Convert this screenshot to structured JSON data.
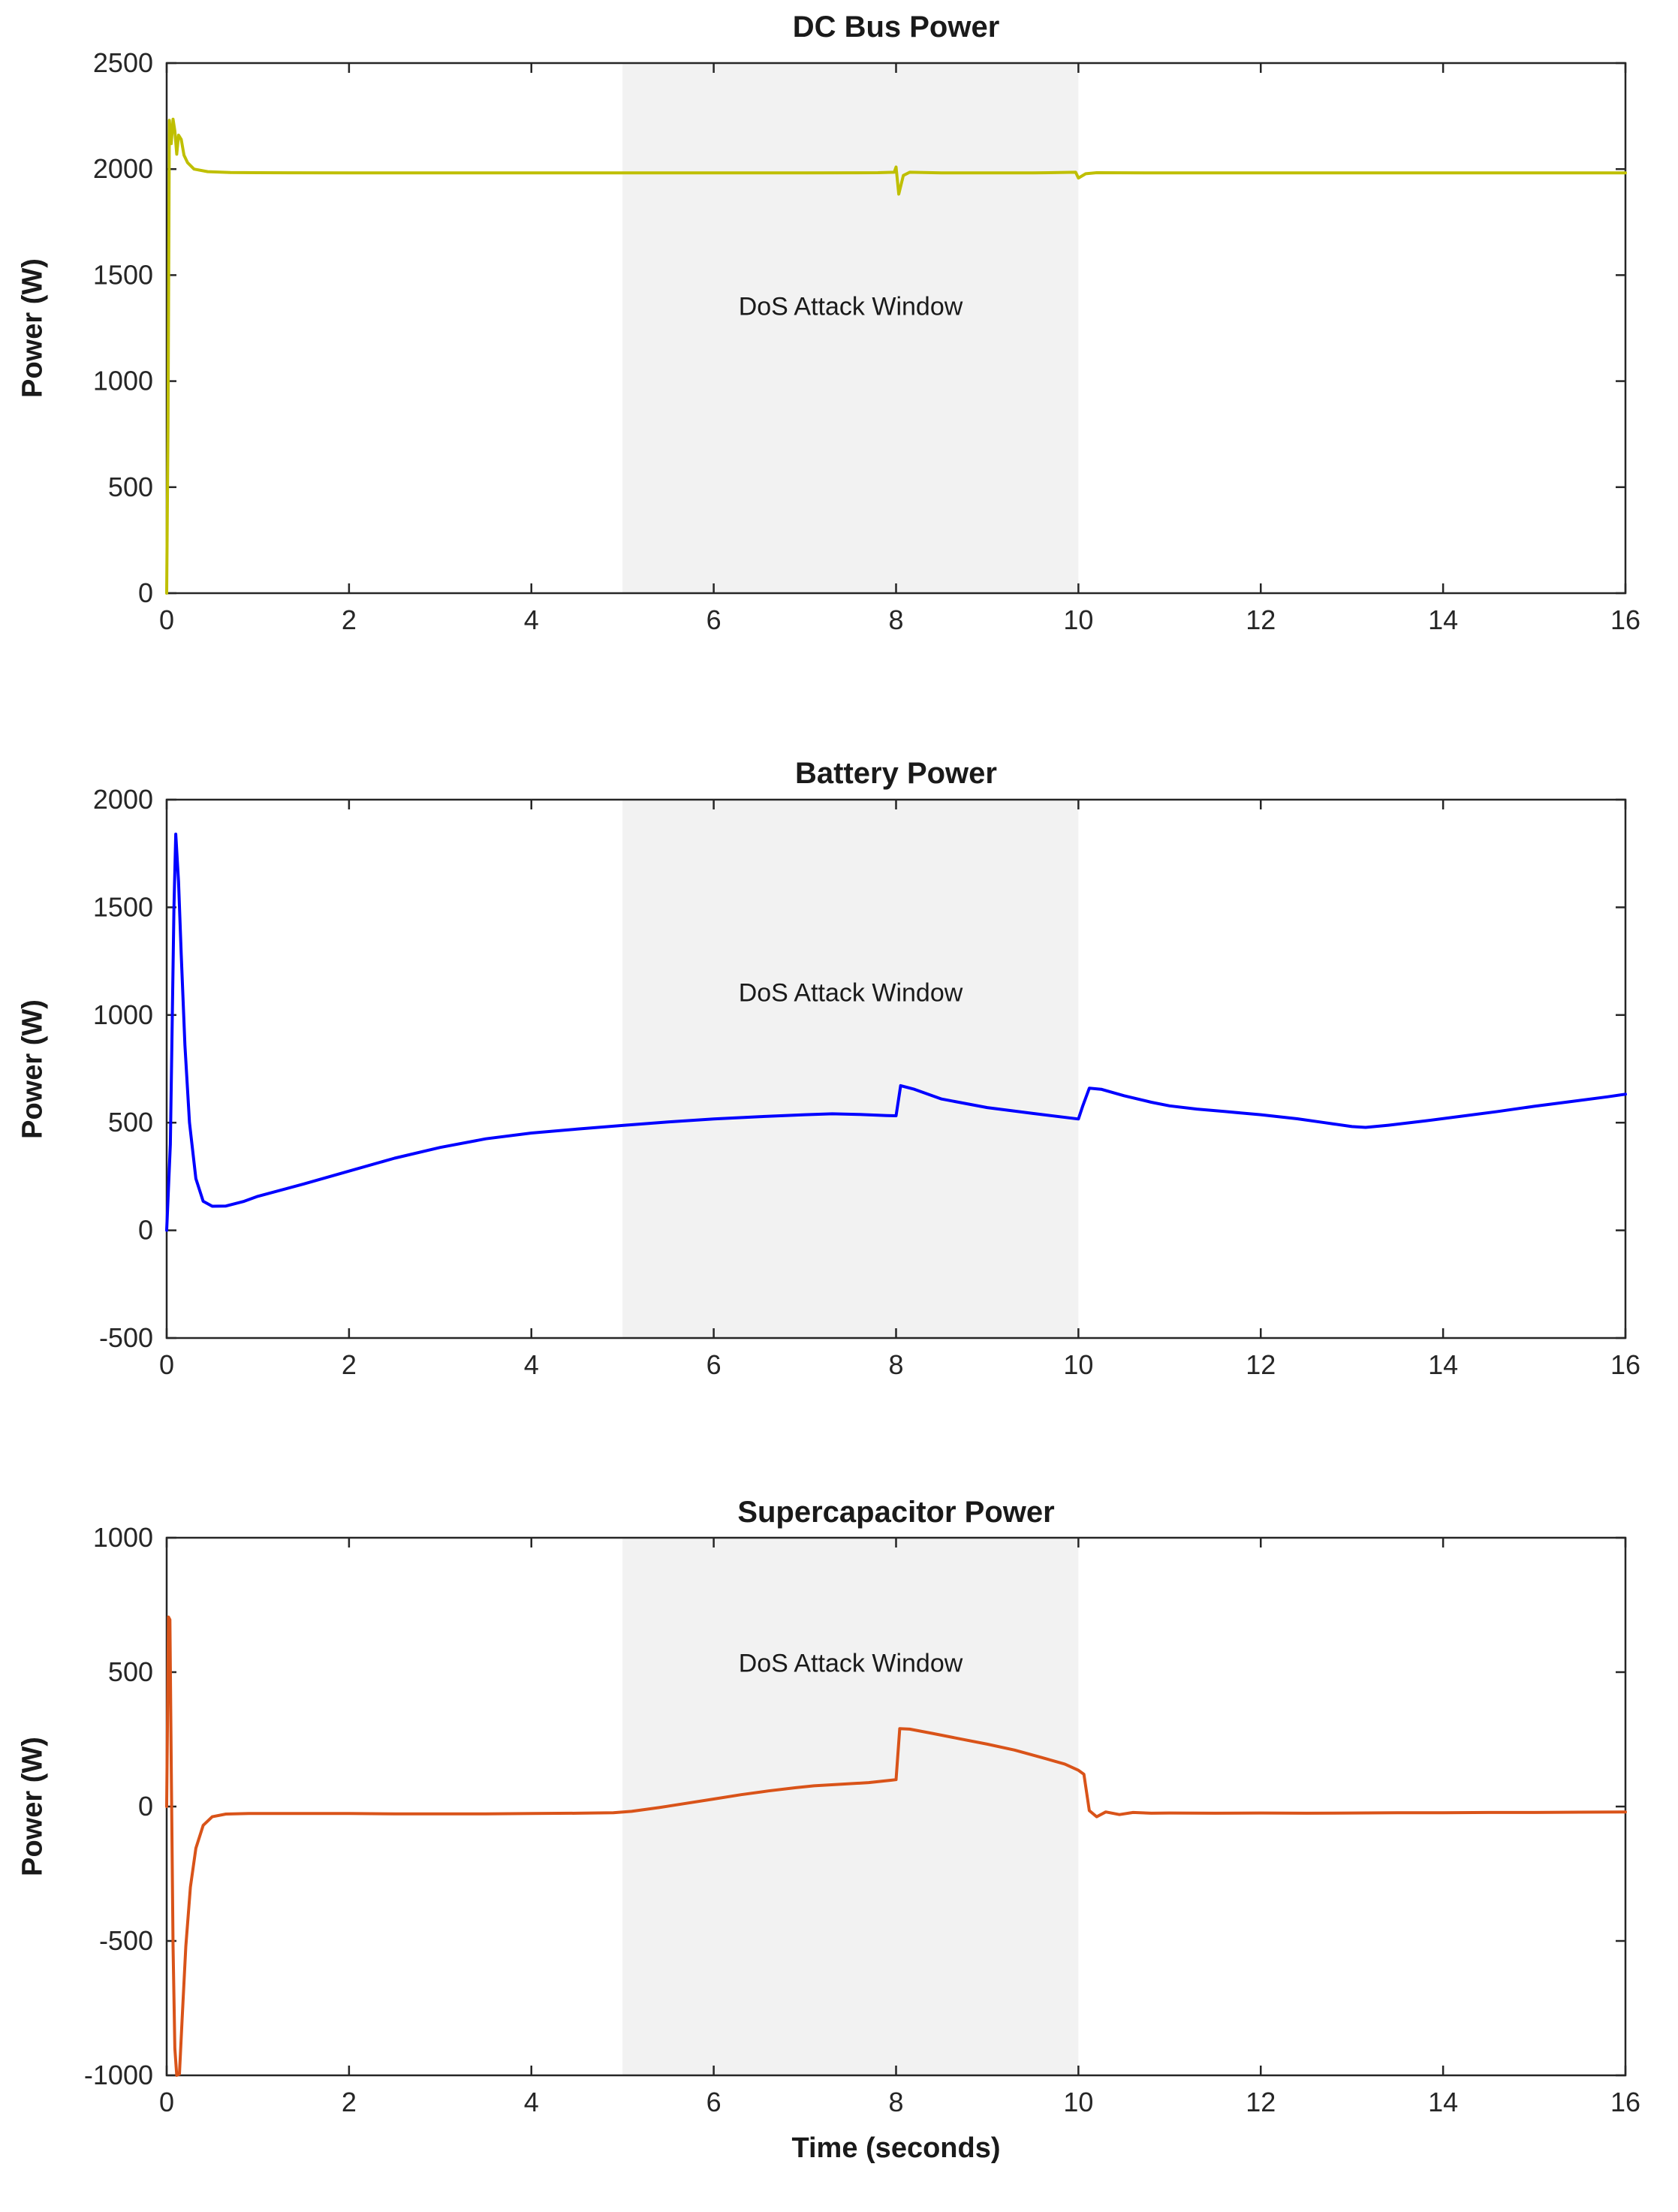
{
  "page": {
    "background": "#ffffff",
    "text_color": "#1a1a1a",
    "axis_color": "#262626"
  },
  "chart_data": [
    {
      "type": "line",
      "title": "DC Bus Power",
      "ylabel": "Power (W)",
      "xlabel": "",
      "annotation": "DoS Attack Window",
      "legend": "none",
      "grid": false,
      "color": "#BFBF00",
      "xlim": [
        0,
        16
      ],
      "ylim": [
        0,
        2500
      ],
      "xticks": [
        0,
        2,
        4,
        6,
        8,
        10,
        12,
        14,
        16
      ],
      "yticks": [
        0,
        500,
        1000,
        1500,
        2000,
        2500
      ],
      "shaded_region": {
        "x0": 5,
        "x1": 10,
        "color": "#F2F2F2",
        "label": "DoS Attack Window"
      },
      "points": [
        [
          0,
          0
        ],
        [
          0.015,
          800
        ],
        [
          0.03,
          2230
        ],
        [
          0.05,
          2120
        ],
        [
          0.07,
          2235
        ],
        [
          0.09,
          2180
        ],
        [
          0.11,
          2070
        ],
        [
          0.13,
          2160
        ],
        [
          0.16,
          2140
        ],
        [
          0.19,
          2065
        ],
        [
          0.23,
          2030
        ],
        [
          0.3,
          2000
        ],
        [
          0.45,
          1988
        ],
        [
          0.7,
          1984
        ],
        [
          1,
          1983
        ],
        [
          2,
          1982
        ],
        [
          3,
          1982
        ],
        [
          4,
          1982
        ],
        [
          5,
          1982
        ],
        [
          6,
          1982
        ],
        [
          7,
          1982
        ],
        [
          7.8,
          1983
        ],
        [
          7.98,
          1985
        ],
        [
          8.0,
          2010
        ],
        [
          8.03,
          1882
        ],
        [
          8.08,
          1970
        ],
        [
          8.15,
          1985
        ],
        [
          8.5,
          1982
        ],
        [
          9,
          1982
        ],
        [
          9.5,
          1982
        ],
        [
          9.97,
          1985
        ],
        [
          10.0,
          1958
        ],
        [
          10.08,
          1978
        ],
        [
          10.2,
          1983
        ],
        [
          11,
          1982
        ],
        [
          12,
          1982
        ],
        [
          13,
          1982
        ],
        [
          14,
          1982
        ],
        [
          15,
          1982
        ],
        [
          16,
          1982
        ]
      ]
    },
    {
      "type": "line",
      "title": "Battery Power",
      "ylabel": "Power (W)",
      "xlabel": "",
      "annotation": "DoS Attack Window",
      "legend": "none",
      "grid": false,
      "color": "#0000FF",
      "xlim": [
        0,
        16
      ],
      "ylim": [
        -500,
        2000
      ],
      "xticks": [
        0,
        2,
        4,
        6,
        8,
        10,
        12,
        14,
        16
      ],
      "yticks": [
        -500,
        0,
        500,
        1000,
        1500,
        2000
      ],
      "shaded_region": {
        "x0": 5,
        "x1": 10,
        "color": "#F2F2F2",
        "label": "DoS Attack Window"
      },
      "points": [
        [
          0,
          0
        ],
        [
          0.04,
          400
        ],
        [
          0.08,
          1500
        ],
        [
          0.1,
          1840
        ],
        [
          0.13,
          1620
        ],
        [
          0.16,
          1280
        ],
        [
          0.2,
          860
        ],
        [
          0.25,
          500
        ],
        [
          0.32,
          240
        ],
        [
          0.4,
          135
        ],
        [
          0.5,
          112
        ],
        [
          0.65,
          113
        ],
        [
          0.85,
          135
        ],
        [
          1,
          158
        ],
        [
          1.5,
          215
        ],
        [
          2,
          275
        ],
        [
          2.5,
          335
        ],
        [
          3,
          385
        ],
        [
          3.5,
          425
        ],
        [
          4,
          452
        ],
        [
          4.5,
          470
        ],
        [
          5,
          487
        ],
        [
          5.5,
          503
        ],
        [
          6,
          517
        ],
        [
          6.5,
          528
        ],
        [
          7,
          537
        ],
        [
          7.3,
          541
        ],
        [
          7.6,
          538
        ],
        [
          7.9,
          533
        ],
        [
          8.0,
          532
        ],
        [
          8.05,
          672
        ],
        [
          8.2,
          655
        ],
        [
          8.5,
          610
        ],
        [
          9,
          570
        ],
        [
          9.5,
          543
        ],
        [
          10,
          517
        ],
        [
          10.05,
          580
        ],
        [
          10.12,
          660
        ],
        [
          10.25,
          655
        ],
        [
          10.5,
          625
        ],
        [
          10.8,
          595
        ],
        [
          11,
          578
        ],
        [
          11.3,
          563
        ],
        [
          11.6,
          552
        ],
        [
          12,
          537
        ],
        [
          12.4,
          518
        ],
        [
          12.7,
          500
        ],
        [
          13,
          482
        ],
        [
          13.15,
          478
        ],
        [
          13.4,
          488
        ],
        [
          13.8,
          508
        ],
        [
          14.2,
          530
        ],
        [
          14.6,
          552
        ],
        [
          15,
          576
        ],
        [
          15.4,
          598
        ],
        [
          15.8,
          620
        ],
        [
          16,
          632
        ]
      ]
    },
    {
      "type": "line",
      "title": "Supercapacitor Power",
      "ylabel": "Power (W)",
      "xlabel": "Time (seconds)",
      "annotation": "DoS Attack Window",
      "legend": "none",
      "grid": false,
      "color": "#D95319",
      "xlim": [
        0,
        16
      ],
      "ylim": [
        -1000,
        1000
      ],
      "xticks": [
        0,
        2,
        4,
        6,
        8,
        10,
        12,
        14,
        16
      ],
      "yticks": [
        -1000,
        -500,
        0,
        500,
        1000
      ],
      "shaded_region": {
        "x0": 5,
        "x1": 10,
        "color": "#F2F2F2",
        "label": "DoS Attack Window"
      },
      "points": [
        [
          0,
          0
        ],
        [
          0.02,
          705
        ],
        [
          0.035,
          695
        ],
        [
          0.05,
          150
        ],
        [
          0.07,
          -520
        ],
        [
          0.09,
          -900
        ],
        [
          0.11,
          -1000
        ],
        [
          0.14,
          -995
        ],
        [
          0.17,
          -790
        ],
        [
          0.21,
          -520
        ],
        [
          0.26,
          -300
        ],
        [
          0.32,
          -155
        ],
        [
          0.4,
          -70
        ],
        [
          0.5,
          -38
        ],
        [
          0.65,
          -28
        ],
        [
          0.9,
          -26
        ],
        [
          1,
          -26
        ],
        [
          1.5,
          -26
        ],
        [
          2,
          -26
        ],
        [
          2.5,
          -27
        ],
        [
          3,
          -27
        ],
        [
          3.5,
          -27
        ],
        [
          4,
          -26
        ],
        [
          4.5,
          -25
        ],
        [
          4.9,
          -23
        ],
        [
          5.1,
          -18
        ],
        [
          5.4,
          -4
        ],
        [
          5.7,
          12
        ],
        [
          6,
          28
        ],
        [
          6.3,
          44
        ],
        [
          6.6,
          58
        ],
        [
          6.9,
          70
        ],
        [
          7.1,
          77
        ],
        [
          7.4,
          83
        ],
        [
          7.7,
          89
        ],
        [
          7.95,
          98
        ],
        [
          8.0,
          100
        ],
        [
          8.04,
          290
        ],
        [
          8.15,
          288
        ],
        [
          8.4,
          272
        ],
        [
          8.7,
          252
        ],
        [
          9,
          232
        ],
        [
          9.3,
          210
        ],
        [
          9.6,
          182
        ],
        [
          9.85,
          158
        ],
        [
          10.0,
          135
        ],
        [
          10.06,
          120
        ],
        [
          10.12,
          -15
        ],
        [
          10.2,
          -38
        ],
        [
          10.3,
          -20
        ],
        [
          10.45,
          -30
        ],
        [
          10.6,
          -22
        ],
        [
          10.8,
          -25
        ],
        [
          11,
          -24
        ],
        [
          11.5,
          -25
        ],
        [
          12,
          -24
        ],
        [
          12.5,
          -25
        ],
        [
          13,
          -24
        ],
        [
          13.5,
          -23
        ],
        [
          14,
          -23
        ],
        [
          14.5,
          -22
        ],
        [
          15,
          -22
        ],
        [
          15.5,
          -21
        ],
        [
          16,
          -20
        ]
      ]
    }
  ]
}
